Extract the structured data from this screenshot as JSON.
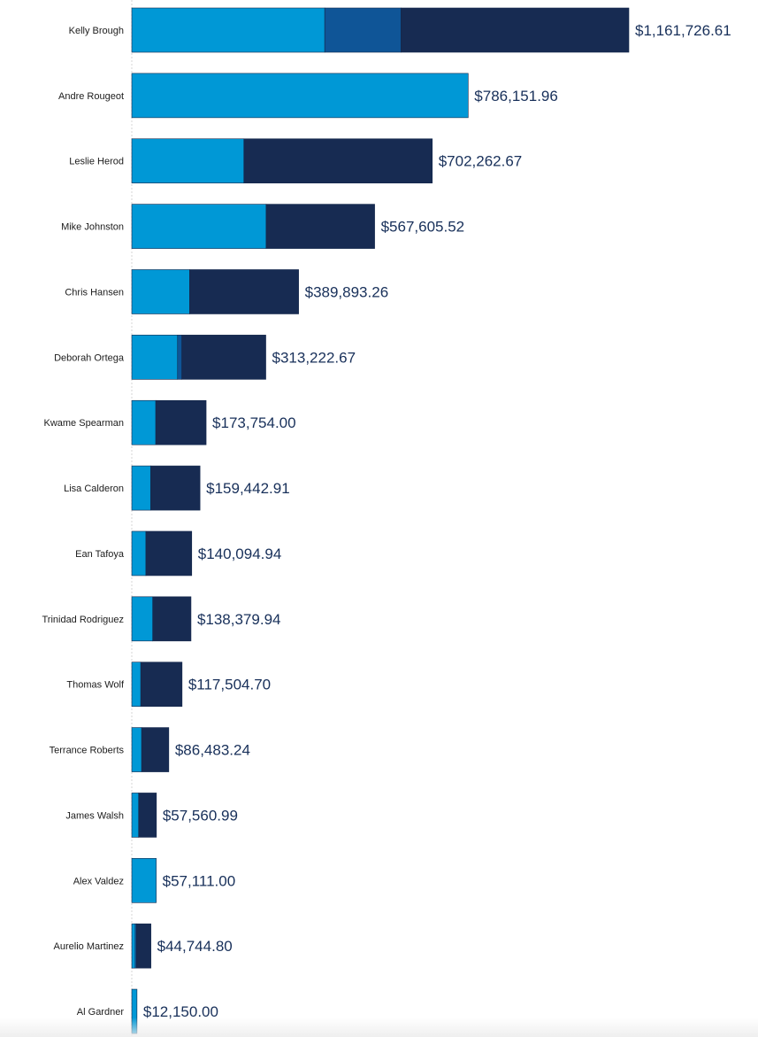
{
  "chart_data": {
    "type": "bar",
    "orientation": "horizontal",
    "stacked": true,
    "title": "",
    "xlabel": "",
    "ylabel": "",
    "xlim": [
      0,
      1161726.61
    ],
    "grid": false,
    "legend": "none",
    "categories": [
      "Kelly Brough",
      "Andre Rougeot",
      "Leslie Herod",
      "Mike Johnston",
      "Chris Hansen",
      "Deborah Ortega",
      "Kwame Spearman",
      "Lisa Calderon",
      "Ean Tafoya",
      "Trinidad Rodriguez",
      "Thomas Wolf",
      "Terrance Roberts",
      "James Walsh",
      "Alex Valdez",
      "Aurelio Martinez",
      "Al Gardner"
    ],
    "series": [
      {
        "color": "#0098d6",
        "values": [
          451000,
          786151.96,
          262000,
          314000,
          135000,
          107000,
          56000,
          44000,
          33000,
          49000,
          21000,
          23000,
          16000,
          57111.0,
          8000,
          12150.0
        ]
      },
      {
        "color": "#0f5597",
        "values": [
          178000,
          0,
          0,
          0,
          0,
          10000,
          0,
          0,
          0,
          0,
          0,
          0,
          0,
          0,
          3000,
          0
        ]
      },
      {
        "color": "#172b52",
        "values": [
          532726.61,
          0,
          440262.67,
          253605.52,
          254893.26,
          196222.67,
          117754.0,
          115442.91,
          107094.94,
          89379.94,
          96504.7,
          63483.24,
          41560.99,
          0,
          33744.8,
          0
        ]
      }
    ],
    "totals": [
      "$1,161,726.61",
      "$786,151.96",
      "$702,262.67",
      "$567,605.52",
      "$389,893.26",
      "$313,222.67",
      "$173,754.00",
      "$159,442.91",
      "$140,094.94",
      "$138,379.94",
      "$117,504.70",
      "$86,483.24",
      "$57,560.99",
      "$57,111.00",
      "$44,744.80",
      "$12,150.00"
    ]
  }
}
